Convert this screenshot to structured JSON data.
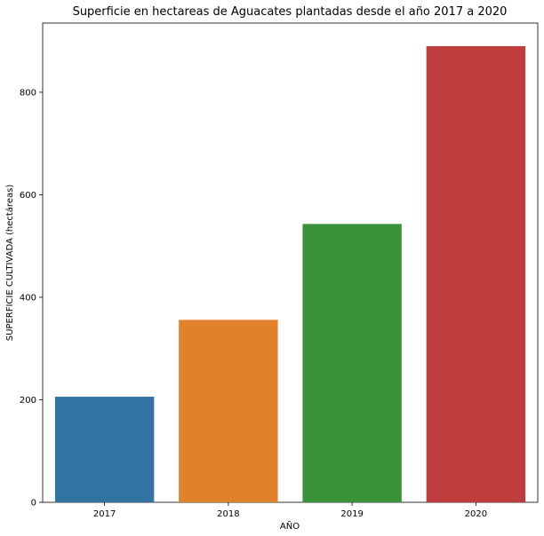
{
  "chart_data": {
    "type": "bar",
    "title": "Superficie en hectareas de Aguacates plantadas desde el año 2017 a 2020",
    "xlabel": "AÑO",
    "ylabel": "SUPERFICIE CULTIVADA (hectáreas)",
    "categories": [
      "2017",
      "2018",
      "2019",
      "2020"
    ],
    "values": [
      206,
      356,
      543,
      890
    ],
    "colors": [
      "#3274a1",
      "#e1812c",
      "#3a923a",
      "#c03d3e"
    ],
    "ylim": [
      0,
      935
    ],
    "yticks": [
      0,
      200,
      400,
      600,
      800
    ],
    "grid": false,
    "legend": "none"
  }
}
